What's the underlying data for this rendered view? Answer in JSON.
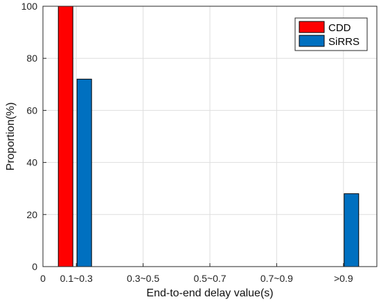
{
  "chart_data": {
    "type": "bar",
    "categories": [
      "0.1~0.3",
      "0.3~0.5",
      "0.5~0.7",
      "0.7~0.9",
      ">0.9"
    ],
    "zero_tick_label": "0",
    "series": [
      {
        "name": "CDD",
        "values": [
          100,
          0,
          0,
          0,
          0
        ],
        "color": "#ff0000"
      },
      {
        "name": "SiRRS",
        "values": [
          72,
          0,
          0,
          0,
          28
        ],
        "color": "#0070c0"
      }
    ],
    "title": "",
    "xlabel": "End-to-end delay value(s)",
    "ylabel": "Proportion(%)",
    "ylim": [
      0,
      100
    ],
    "yticks": [
      0,
      20,
      40,
      60,
      80,
      100
    ],
    "grid": true,
    "legend": "top-right"
  }
}
